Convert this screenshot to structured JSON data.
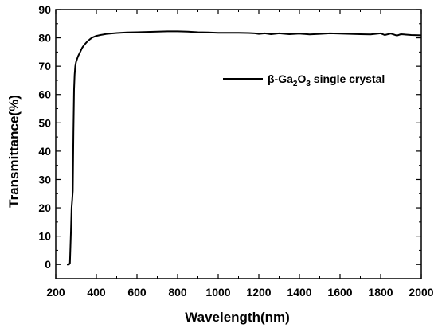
{
  "chart_data": {
    "type": "line",
    "title": "",
    "xlabel": "Wavelength(nm)",
    "ylabel": "Transmittance(%)",
    "xlim": [
      200,
      2000
    ],
    "ylim": [
      -5,
      90
    ],
    "xticks": [
      200,
      400,
      600,
      800,
      1000,
      1200,
      1400,
      1600,
      1800,
      2000
    ],
    "yticks": [
      0,
      10,
      20,
      30,
      40,
      50,
      60,
      70,
      80,
      90
    ],
    "grid": false,
    "legend_position": "upper-right",
    "line_color": "#000000",
    "series": [
      {
        "name_parts": {
          "prefix": "β-Ga",
          "sub1": "2",
          "mid": "O",
          "sub2": "3",
          "suffix": " single crystal"
        },
        "x": [
          255,
          265,
          270,
          275,
          278,
          281,
          284,
          287,
          290,
          293,
          296,
          300,
          310,
          320,
          330,
          340,
          350,
          360,
          370,
          380,
          400,
          420,
          450,
          500,
          550,
          600,
          650,
          700,
          750,
          800,
          850,
          900,
          950,
          1000,
          1050,
          1100,
          1150,
          1180,
          1200,
          1230,
          1260,
          1300,
          1350,
          1400,
          1450,
          1500,
          1550,
          1600,
          1650,
          1700,
          1750,
          1800,
          1820,
          1850,
          1880,
          1900,
          1950,
          2000
        ],
        "y": [
          0,
          0,
          0.5,
          12,
          20,
          23,
          26,
          47,
          62,
          67,
          70,
          71.5,
          73.5,
          75,
          76.5,
          77.5,
          78.3,
          79,
          79.6,
          80.1,
          80.7,
          81.0,
          81.4,
          81.7,
          81.9,
          82.0,
          82.1,
          82.2,
          82.3,
          82.3,
          82.2,
          82.0,
          81.9,
          81.8,
          81.8,
          81.8,
          81.7,
          81.6,
          81.4,
          81.6,
          81.3,
          81.6,
          81.3,
          81.5,
          81.2,
          81.4,
          81.6,
          81.5,
          81.4,
          81.3,
          81.2,
          81.6,
          81.0,
          81.5,
          80.8,
          81.3,
          81.0,
          80.9
        ]
      }
    ]
  }
}
